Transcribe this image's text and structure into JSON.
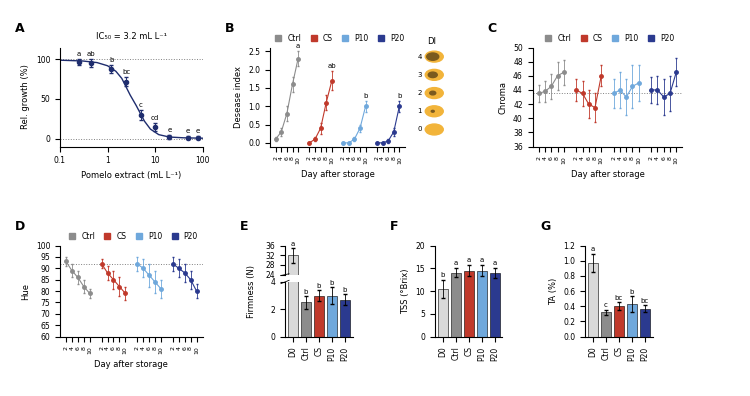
{
  "chart_data": [
    {
      "panel": "A",
      "type": "scatter",
      "title": "IC₅₀ = 3.2 mL L⁻¹",
      "x_label": "Pomelo extract (mL L⁻¹)",
      "y_label": "Rel. growth (%)",
      "log": "x",
      "xlim": [
        0.1,
        100
      ],
      "xticks": [
        0.1,
        1,
        10,
        100
      ],
      "ylim": [
        -10,
        115
      ],
      "yticks": [
        0,
        50,
        100
      ],
      "hlines": [
        0,
        100
      ],
      "color": "#1f2d6e",
      "x": [
        0.25,
        0.45,
        1.2,
        2.5,
        5,
        10,
        20,
        50,
        80
      ],
      "values": [
        97,
        96,
        88,
        72,
        30,
        15,
        2,
        1,
        1
      ],
      "errors": [
        4,
        5,
        5,
        6,
        6,
        5,
        2,
        2,
        2
      ],
      "letters": [
        "a",
        "ab",
        "b",
        "bc",
        "c",
        "cd",
        "e",
        "e",
        "e"
      ],
      "fit": {
        "x": [
          0.1,
          0.3,
          0.6,
          1,
          1.5,
          2,
          3,
          4,
          6,
          8,
          12,
          20,
          40,
          100
        ],
        "values": [
          99,
          98,
          96,
          92,
          85,
          76,
          55,
          42,
          22,
          12,
          5,
          2,
          1,
          0.5
        ]
      }
    },
    {
      "panel": "B",
      "type": "line",
      "x_label": "Day after storage",
      "y_label": "Desease index",
      "ylim": [
        -0.1,
        2.6
      ],
      "yticks": [
        0.0,
        0.5,
        1.0,
        1.5,
        2.0,
        2.5
      ],
      "legend": "lower center",
      "series": [
        {
          "name": "Ctrl",
          "color": "#8c8c8c",
          "x": [
            2,
            4,
            6,
            8,
            10
          ],
          "values": [
            0.1,
            0.3,
            0.8,
            1.6,
            2.3
          ],
          "errors": [
            0.05,
            0.1,
            0.2,
            0.2,
            0.2
          ],
          "letter": "a"
        },
        {
          "name": "CS",
          "color": "#c0392b",
          "x": [
            2,
            4,
            6,
            8,
            10
          ],
          "values": [
            0.0,
            0.1,
            0.4,
            1.1,
            1.7
          ],
          "errors": [
            0.02,
            0.05,
            0.15,
            0.2,
            0.25
          ],
          "letter": "ab"
        },
        {
          "name": "P10",
          "color": "#6fa8dc",
          "x": [
            2,
            4,
            6,
            8,
            10
          ],
          "values": [
            0.0,
            0.0,
            0.1,
            0.4,
            1.0
          ],
          "errors": [
            0.02,
            0.02,
            0.05,
            0.1,
            0.15
          ],
          "letter": "b"
        },
        {
          "name": "P20",
          "color": "#2b3a8f",
          "x": [
            2,
            4,
            6,
            8,
            10
          ],
          "values": [
            0.0,
            0.0,
            0.05,
            0.3,
            1.0
          ],
          "errors": [
            0.02,
            0.02,
            0.05,
            0.1,
            0.15
          ],
          "letter": "b"
        }
      ],
      "inset": {
        "title": "DI",
        "levels": [
          4,
          3,
          2,
          1,
          0
        ]
      }
    },
    {
      "panel": "C",
      "type": "line",
      "x_label": "Day after storage",
      "y_label": "Chroma",
      "ylim": [
        36,
        50
      ],
      "yticks": [
        36,
        38,
        40,
        42,
        44,
        46,
        48,
        50
      ],
      "hlines": [
        43.5
      ],
      "legend": "lower center",
      "series": [
        {
          "name": "Ctrl",
          "color": "#8c8c8c",
          "x": [
            2,
            4,
            6,
            8,
            10
          ],
          "values": [
            43.5,
            43.8,
            44.5,
            46.0,
            46.5
          ],
          "errors": [
            1.2,
            1.5,
            1.8,
            2.0,
            1.8
          ]
        },
        {
          "name": "CS",
          "color": "#c0392b",
          "x": [
            2,
            4,
            6,
            8,
            10
          ],
          "values": [
            44.0,
            43.5,
            42.0,
            41.5,
            46.0
          ],
          "errors": [
            1.5,
            1.8,
            2.0,
            2.0,
            1.5
          ]
        },
        {
          "name": "P10",
          "color": "#6fa8dc",
          "x": [
            2,
            4,
            6,
            8,
            10
          ],
          "values": [
            43.5,
            44.0,
            43.0,
            44.5,
            45.0
          ],
          "errors": [
            2.0,
            2.5,
            2.5,
            3.0,
            2.5
          ]
        },
        {
          "name": "P20",
          "color": "#2b3a8f",
          "x": [
            2,
            4,
            6,
            8,
            10
          ],
          "values": [
            44.0,
            44.0,
            43.0,
            43.5,
            46.5
          ],
          "errors": [
            1.8,
            2.0,
            2.5,
            2.5,
            2.0
          ]
        }
      ]
    },
    {
      "panel": "D",
      "type": "line",
      "x_label": "Day after storage",
      "y_label": "Hue",
      "ylim": [
        60,
        100
      ],
      "yticks": [
        60,
        65,
        70,
        75,
        80,
        85,
        90,
        95,
        100
      ],
      "hlines": [
        92
      ],
      "legend": "lower center",
      "series": [
        {
          "name": "Ctrl",
          "color": "#8c8c8c",
          "x": [
            2,
            4,
            6,
            8,
            10
          ],
          "values": [
            93,
            89,
            86,
            82,
            79
          ],
          "errors": [
            2,
            3,
            3,
            3,
            2
          ]
        },
        {
          "name": "CS",
          "color": "#c0392b",
          "x": [
            2,
            4,
            6,
            8,
            10
          ],
          "values": [
            92,
            88,
            85,
            82,
            79
          ],
          "errors": [
            2,
            3,
            4,
            4,
            3
          ]
        },
        {
          "name": "P10",
          "color": "#6fa8dc",
          "x": [
            2,
            4,
            6,
            8,
            10
          ],
          "values": [
            92,
            90,
            87,
            84,
            81
          ],
          "errors": [
            3,
            4,
            5,
            5,
            4
          ]
        },
        {
          "name": "P20",
          "color": "#2b3a8f",
          "x": [
            2,
            4,
            6,
            8,
            10
          ],
          "values": [
            92,
            90,
            88,
            85,
            80
          ],
          "errors": [
            3,
            4,
            4,
            4,
            3
          ]
        }
      ]
    },
    {
      "panel": "E",
      "type": "bar",
      "y_label": "Firmness (N)",
      "categories": [
        "D0",
        "Ctrl",
        "CS",
        "P10",
        "P20"
      ],
      "values": [
        32,
        2.5,
        3,
        3,
        2.7
      ],
      "errors": [
        3,
        0.5,
        0.4,
        0.6,
        0.4
      ],
      "letters": [
        "a",
        "b",
        "b",
        "b",
        "b"
      ],
      "colors": [
        "#d9d9d9",
        "#8c8c8c",
        "#c0392b",
        "#6fa8dc",
        "#2b3a8f"
      ],
      "broken_ylims": [
        [
          0,
          4
        ],
        [
          24,
          36
        ]
      ],
      "broken_yticks": [
        [
          0,
          2,
          4
        ],
        [
          24,
          28,
          32,
          36
        ]
      ]
    },
    {
      "panel": "F",
      "type": "bar",
      "y_label": "TSS (°Brix)",
      "categories": [
        "D0",
        "Ctrl",
        "CS",
        "P10",
        "P20"
      ],
      "values": [
        10.5,
        14,
        14.5,
        14.5,
        14
      ],
      "errors": [
        2,
        1,
        1.2,
        1.3,
        1.1
      ],
      "letters": [
        "b",
        "a",
        "a",
        "a",
        "a"
      ],
      "colors": [
        "#d9d9d9",
        "#8c8c8c",
        "#c0392b",
        "#6fa8dc",
        "#2b3a8f"
      ],
      "ylim": [
        0,
        20
      ],
      "yticks": [
        0,
        5,
        10,
        15,
        20
      ]
    },
    {
      "panel": "G",
      "type": "bar",
      "y_label": "TA (%)",
      "categories": [
        "D0",
        "Ctrl",
        "CS",
        "P10",
        "P20"
      ],
      "values": [
        0.97,
        0.32,
        0.4,
        0.43,
        0.37
      ],
      "errors": [
        0.12,
        0.03,
        0.05,
        0.1,
        0.04
      ],
      "letters": [
        "a",
        "c",
        "bc",
        "b",
        "bc"
      ],
      "colors": [
        "#d9d9d9",
        "#8c8c8c",
        "#c0392b",
        "#6fa8dc",
        "#2b3a8f"
      ],
      "ylim": [
        0,
        1.2
      ],
      "yticks": [
        0.0,
        0.2,
        0.4,
        0.6,
        0.8,
        1.0,
        1.2
      ]
    }
  ]
}
